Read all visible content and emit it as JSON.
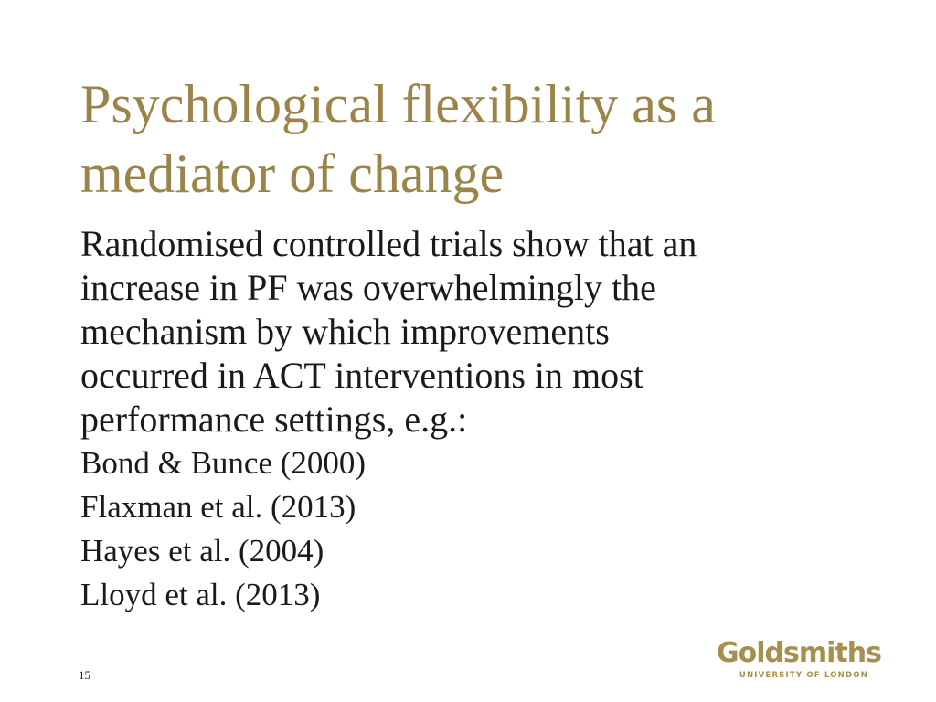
{
  "title": {
    "lines": [
      "Psychological flexibility as a",
      "mediator of change"
    ]
  },
  "body": {
    "lines": [
      "Randomised controlled trials show that an",
      "increase in PF was overwhelmingly the",
      "mechanism by which improvements",
      "occurred in ACT interventions in most",
      "performance settings, e.g.:"
    ]
  },
  "references": [
    "Bond & Bunce (2000)",
    "Flaxman et al. (2013)",
    "Hayes et al. (2004)",
    "Lloyd et al. (2013)"
  ],
  "slide_number": "15",
  "logo": {
    "name": "Goldsmiths",
    "subtitle": "UNIVERSITY OF LONDON"
  }
}
